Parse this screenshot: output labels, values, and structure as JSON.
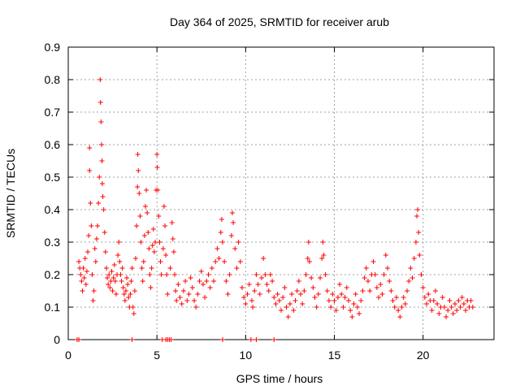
{
  "chart_data": {
    "type": "scatter",
    "title": "Day 364 of 2025, SRMTID for receiver arub",
    "xlabel": "GPS time / hours",
    "ylabel": "SRMTID / TECUs",
    "xlim": [
      0,
      24
    ],
    "ylim": [
      0,
      0.9
    ],
    "xticks": [
      0,
      5,
      10,
      15,
      20
    ],
    "yticks": [
      0,
      0.1,
      0.2,
      0.3,
      0.4,
      0.5,
      0.6,
      0.7,
      0.8,
      0.9
    ],
    "grid": true,
    "marker": "+",
    "color": "#ff0000",
    "series": [
      {
        "name": "arub",
        "points": [
          [
            0.5,
            0.0
          ],
          [
            0.6,
            0.0
          ],
          [
            0.6,
            0.24
          ],
          [
            0.65,
            0.22
          ],
          [
            0.7,
            0.2
          ],
          [
            0.75,
            0.18
          ],
          [
            0.8,
            0.15
          ],
          [
            0.85,
            0.22
          ],
          [
            0.9,
            0.19
          ],
          [
            0.95,
            0.25
          ],
          [
            1.0,
            0.17
          ],
          [
            1.05,
            0.21
          ],
          [
            1.1,
            0.27
          ],
          [
            1.15,
            0.32
          ],
          [
            1.2,
            0.52
          ],
          [
            1.2,
            0.59
          ],
          [
            1.25,
            0.42
          ],
          [
            1.3,
            0.35
          ],
          [
            1.35,
            0.2
          ],
          [
            1.4,
            0.12
          ],
          [
            1.45,
            0.15
          ],
          [
            1.5,
            0.28
          ],
          [
            1.55,
            0.24
          ],
          [
            1.6,
            0.31
          ],
          [
            1.65,
            0.35
          ],
          [
            1.7,
            0.42
          ],
          [
            1.75,
            0.5
          ],
          [
            1.8,
            0.8
          ],
          [
            1.82,
            0.73
          ],
          [
            1.85,
            0.67
          ],
          [
            1.88,
            0.6
          ],
          [
            1.9,
            0.55
          ],
          [
            1.92,
            0.48
          ],
          [
            1.95,
            0.44
          ],
          [
            2.0,
            0.4
          ],
          [
            2.05,
            0.33
          ],
          [
            2.1,
            0.27
          ],
          [
            2.15,
            0.22
          ],
          [
            2.2,
            0.19
          ],
          [
            2.25,
            0.17
          ],
          [
            2.3,
            0.2
          ],
          [
            2.35,
            0.16
          ],
          [
            2.4,
            0.18
          ],
          [
            2.45,
            0.21
          ],
          [
            2.5,
            0.15
          ],
          [
            2.55,
            0.19
          ],
          [
            2.6,
            0.23
          ],
          [
            2.65,
            0.18
          ],
          [
            2.7,
            0.14
          ],
          [
            2.75,
            0.2
          ],
          [
            2.8,
            0.26
          ],
          [
            2.85,
            0.3
          ],
          [
            2.9,
            0.24
          ],
          [
            2.95,
            0.2
          ],
          [
            3.0,
            0.18
          ],
          [
            3.05,
            0.22
          ],
          [
            3.1,
            0.16
          ],
          [
            3.15,
            0.14
          ],
          [
            3.2,
            0.12
          ],
          [
            3.25,
            0.15
          ],
          [
            3.3,
            0.19
          ],
          [
            3.35,
            0.17
          ],
          [
            3.4,
            0.13
          ],
          [
            3.45,
            0.1
          ],
          [
            3.5,
            0.14
          ],
          [
            3.55,
            0.18
          ],
          [
            3.6,
            0.0
          ],
          [
            3.6,
            0.22
          ],
          [
            3.65,
            0.1
          ],
          [
            3.7,
            0.08
          ],
          [
            3.75,
            0.15
          ],
          [
            3.8,
            0.25
          ],
          [
            3.85,
            0.35
          ],
          [
            3.9,
            0.47
          ],
          [
            3.92,
            0.57
          ],
          [
            3.95,
            0.52
          ],
          [
            4.0,
            0.45
          ],
          [
            4.05,
            0.38
          ],
          [
            4.1,
            0.3
          ],
          [
            4.15,
            0.22
          ],
          [
            4.2,
            0.18
          ],
          [
            4.25,
            0.24
          ],
          [
            4.3,
            0.32
          ],
          [
            4.35,
            0.41
          ],
          [
            4.4,
            0.46
          ],
          [
            4.45,
            0.39
          ],
          [
            4.5,
            0.33
          ],
          [
            4.55,
            0.28
          ],
          [
            4.6,
            0.2
          ],
          [
            4.65,
            0.16
          ],
          [
            4.7,
            0.22
          ],
          [
            4.75,
            0.29
          ],
          [
            4.8,
            0.34
          ],
          [
            4.85,
            0.27
          ],
          [
            4.9,
            0.3
          ],
          [
            4.95,
            0.46
          ],
          [
            5.0,
            0.57
          ],
          [
            5.02,
            0.53
          ],
          [
            5.05,
            0.46
          ],
          [
            5.1,
            0.38
          ],
          [
            5.15,
            0.3
          ],
          [
            5.2,
            0.24
          ],
          [
            5.25,
            0.2
          ],
          [
            5.3,
            0.0
          ],
          [
            5.35,
            0.28
          ],
          [
            5.4,
            0.41
          ],
          [
            5.45,
            0.35
          ],
          [
            5.5,
            0.0
          ],
          [
            5.5,
            0.26
          ],
          [
            5.55,
            0.2
          ],
          [
            5.6,
            0.0
          ],
          [
            5.6,
            0.14
          ],
          [
            5.7,
            0.0
          ],
          [
            5.75,
            0.22
          ],
          [
            5.8,
            0.0
          ],
          [
            5.85,
            0.36
          ],
          [
            5.9,
            0.31
          ],
          [
            5.95,
            0.27
          ],
          [
            6.0,
            0.2
          ],
          [
            6.05,
            0.15
          ],
          [
            6.1,
            0.12
          ],
          [
            6.2,
            0.17
          ],
          [
            6.3,
            0.13
          ],
          [
            6.4,
            0.11
          ],
          [
            6.5,
            0.15
          ],
          [
            6.6,
            0.18
          ],
          [
            6.7,
            0.12
          ],
          [
            6.8,
            0.14
          ],
          [
            6.9,
            0.19
          ],
          [
            7.0,
            0.16
          ],
          [
            7.1,
            0.12
          ],
          [
            7.2,
            0.1
          ],
          [
            7.3,
            0.14
          ],
          [
            7.4,
            0.18
          ],
          [
            7.5,
            0.21
          ],
          [
            7.6,
            0.17
          ],
          [
            7.7,
            0.13
          ],
          [
            7.8,
            0.18
          ],
          [
            7.9,
            0.2
          ],
          [
            8.0,
            0.16
          ],
          [
            8.1,
            0.22
          ],
          [
            8.2,
            0.18
          ],
          [
            8.3,
            0.24
          ],
          [
            8.4,
            0.28
          ],
          [
            8.5,
            0.25
          ],
          [
            8.6,
            0.33
          ],
          [
            8.65,
            0.37
          ],
          [
            8.7,
            0.0
          ],
          [
            8.7,
            0.3
          ],
          [
            8.8,
            0.24
          ],
          [
            8.9,
            0.18
          ],
          [
            9.0,
            0.14
          ],
          [
            9.1,
            0.2
          ],
          [
            9.2,
            0.32
          ],
          [
            9.25,
            0.39
          ],
          [
            9.3,
            0.36
          ],
          [
            9.4,
            0.28
          ],
          [
            9.5,
            0.22
          ],
          [
            9.6,
            0.3
          ],
          [
            9.7,
            0.24
          ],
          [
            9.8,
            0.16
          ],
          [
            9.9,
            0.13
          ],
          [
            10.0,
            0.11
          ],
          [
            10.1,
            0.14
          ],
          [
            10.2,
            0.17
          ],
          [
            10.3,
            0.0
          ],
          [
            10.35,
            0.12
          ],
          [
            10.4,
            0.1
          ],
          [
            10.5,
            0.15
          ],
          [
            10.6,
            0.0
          ],
          [
            10.6,
            0.2
          ],
          [
            10.7,
            0.17
          ],
          [
            10.8,
            0.14
          ],
          [
            10.9,
            0.19
          ],
          [
            11.0,
            0.25
          ],
          [
            11.1,
            0.2
          ],
          [
            11.2,
            0.17
          ],
          [
            11.3,
            0.15
          ],
          [
            11.4,
            0.2
          ],
          [
            11.5,
            0.18
          ],
          [
            11.6,
            0.0
          ],
          [
            11.6,
            0.13
          ],
          [
            11.7,
            0.11
          ],
          [
            11.8,
            0.14
          ],
          [
            11.9,
            0.12
          ],
          [
            12.0,
            0.09
          ],
          [
            12.1,
            0.13
          ],
          [
            12.2,
            0.16
          ],
          [
            12.3,
            0.1
          ],
          [
            12.4,
            0.07
          ],
          [
            12.5,
            0.11
          ],
          [
            12.6,
            0.14
          ],
          [
            12.7,
            0.09
          ],
          [
            12.8,
            0.12
          ],
          [
            12.9,
            0.15
          ],
          [
            13.0,
            0.18
          ],
          [
            13.1,
            0.14
          ],
          [
            13.2,
            0.11
          ],
          [
            13.3,
            0.15
          ],
          [
            13.4,
            0.2
          ],
          [
            13.5,
            0.25
          ],
          [
            13.55,
            0.3
          ],
          [
            13.6,
            0.24
          ],
          [
            13.7,
            0.19
          ],
          [
            13.8,
            0.16
          ],
          [
            13.9,
            0.13
          ],
          [
            14.0,
            0.1
          ],
          [
            14.1,
            0.14
          ],
          [
            14.2,
            0.19
          ],
          [
            14.3,
            0.25
          ],
          [
            14.35,
            0.3
          ],
          [
            14.4,
            0.26
          ],
          [
            14.5,
            0.2
          ],
          [
            14.6,
            0.15
          ],
          [
            14.7,
            0.12
          ],
          [
            14.8,
            0.1
          ],
          [
            14.9,
            0.14
          ],
          [
            15.0,
            0.12
          ],
          [
            15.1,
            0.09
          ],
          [
            15.2,
            0.13
          ],
          [
            15.3,
            0.17
          ],
          [
            15.4,
            0.14
          ],
          [
            15.5,
            0.1
          ],
          [
            15.6,
            0.13
          ],
          [
            15.7,
            0.16
          ],
          [
            15.8,
            0.12
          ],
          [
            15.9,
            0.09
          ],
          [
            16.0,
            0.07
          ],
          [
            16.1,
            0.11
          ],
          [
            16.2,
            0.14
          ],
          [
            16.3,
            0.1
          ],
          [
            16.4,
            0.08
          ],
          [
            16.5,
            0.12
          ],
          [
            16.6,
            0.15
          ],
          [
            16.7,
            0.19
          ],
          [
            16.8,
            0.22
          ],
          [
            16.9,
            0.18
          ],
          [
            17.0,
            0.15
          ],
          [
            17.1,
            0.2
          ],
          [
            17.2,
            0.24
          ],
          [
            17.3,
            0.2
          ],
          [
            17.4,
            0.16
          ],
          [
            17.5,
            0.13
          ],
          [
            17.6,
            0.17
          ],
          [
            17.7,
            0.14
          ],
          [
            17.8,
            0.2
          ],
          [
            17.9,
            0.26
          ],
          [
            18.0,
            0.22
          ],
          [
            18.1,
            0.18
          ],
          [
            18.2,
            0.15
          ],
          [
            18.3,
            0.12
          ],
          [
            18.4,
            0.1
          ],
          [
            18.5,
            0.13
          ],
          [
            18.6,
            0.09
          ],
          [
            18.7,
            0.07
          ],
          [
            18.8,
            0.1
          ],
          [
            18.9,
            0.13
          ],
          [
            19.0,
            0.11
          ],
          [
            19.1,
            0.15
          ],
          [
            19.2,
            0.18
          ],
          [
            19.3,
            0.22
          ],
          [
            19.4,
            0.19
          ],
          [
            19.5,
            0.25
          ],
          [
            19.6,
            0.3
          ],
          [
            19.65,
            0.38
          ],
          [
            19.7,
            0.4
          ],
          [
            19.75,
            0.33
          ],
          [
            19.8,
            0.26
          ],
          [
            19.9,
            0.2
          ],
          [
            20.0,
            0.16
          ],
          [
            20.1,
            0.13
          ],
          [
            20.2,
            0.11
          ],
          [
            20.3,
            0.14
          ],
          [
            20.4,
            0.12
          ],
          [
            20.5,
            0.09
          ],
          [
            20.6,
            0.12
          ],
          [
            20.7,
            0.15
          ],
          [
            20.8,
            0.11
          ],
          [
            20.9,
            0.08
          ],
          [
            21.0,
            0.1
          ],
          [
            21.1,
            0.13
          ],
          [
            21.2,
            0.1
          ],
          [
            21.3,
            0.07
          ],
          [
            21.4,
            0.09
          ],
          [
            21.5,
            0.12
          ],
          [
            21.6,
            0.1
          ],
          [
            21.7,
            0.08
          ],
          [
            21.8,
            0.11
          ],
          [
            21.9,
            0.09
          ],
          [
            22.0,
            0.12
          ],
          [
            22.1,
            0.1
          ],
          [
            22.2,
            0.13
          ],
          [
            22.3,
            0.11
          ],
          [
            22.4,
            0.09
          ],
          [
            22.5,
            0.12
          ],
          [
            22.6,
            0.1
          ],
          [
            22.7,
            0.12
          ],
          [
            22.8,
            0.1
          ]
        ]
      }
    ]
  }
}
